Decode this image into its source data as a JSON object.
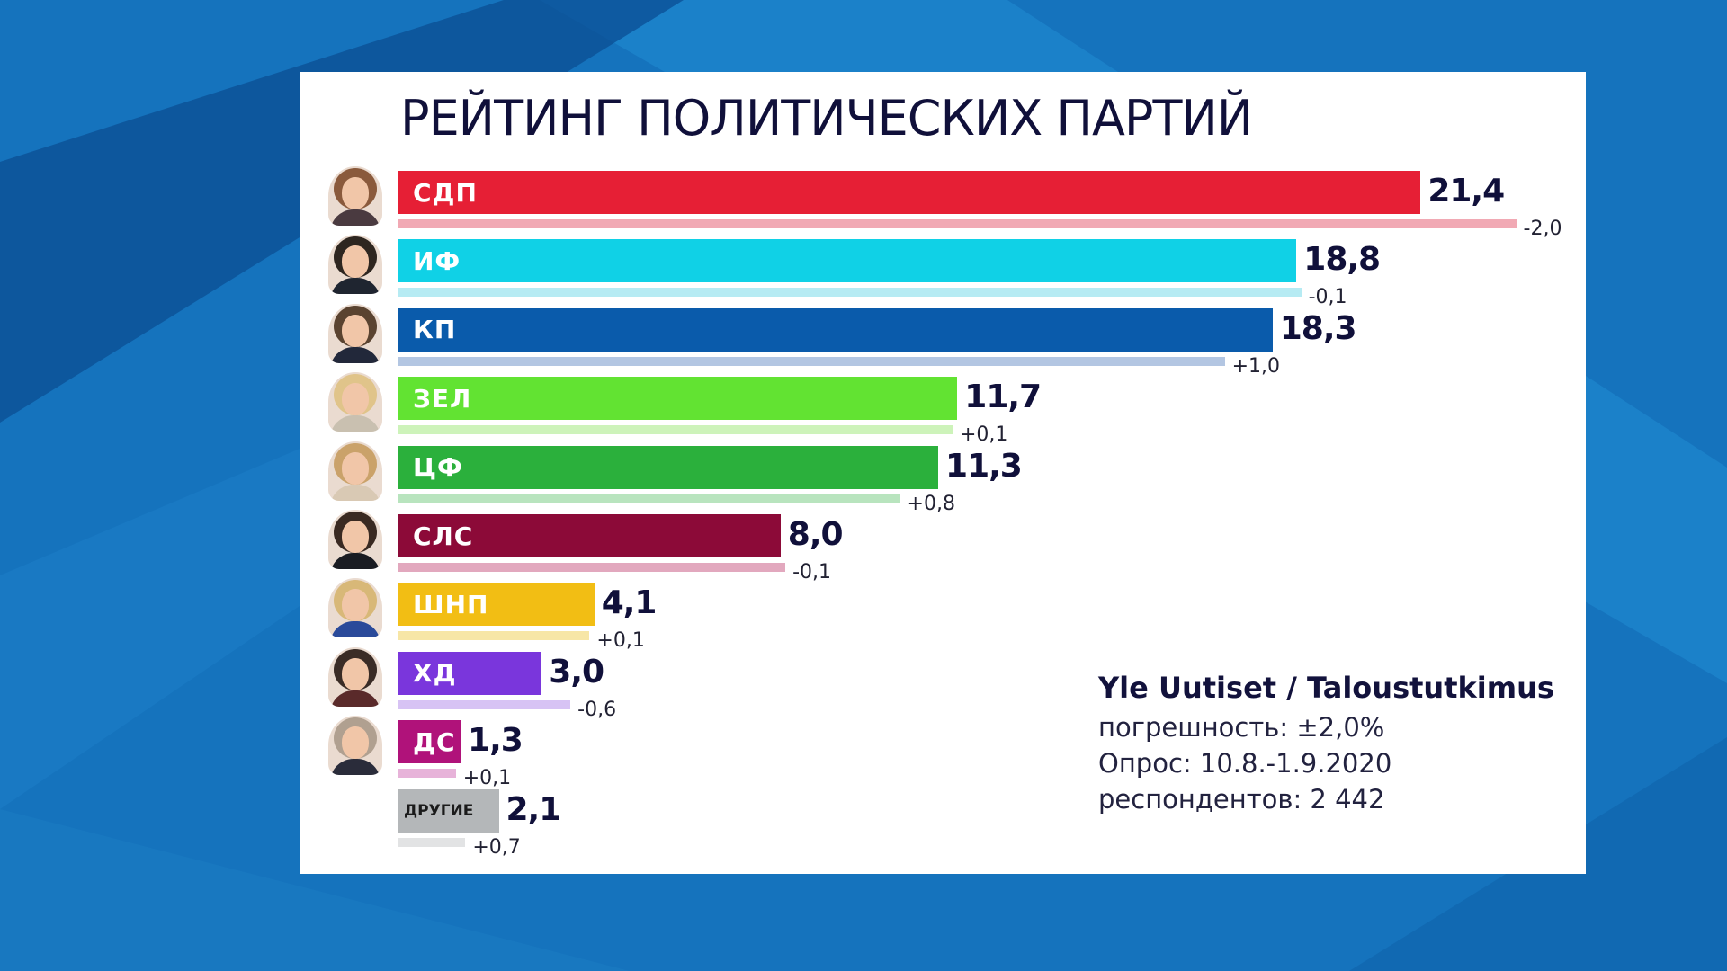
{
  "chart_data": {
    "type": "bar",
    "title": "РЕЙТИНГ ПОЛИТИЧЕСКИХ ПАРТИЙ",
    "orientation": "horizontal",
    "categories": [
      "СДП",
      "ИФ",
      "КП",
      "ЗЕЛ",
      "ЦФ",
      "СЛС",
      "ШНП",
      "ХД",
      "ДС",
      "ДРУГИЕ"
    ],
    "values": [
      21.4,
      18.8,
      18.3,
      11.7,
      11.3,
      8.0,
      4.1,
      3.0,
      1.3,
      2.1
    ],
    "value_labels": [
      "21,4",
      "18,8",
      "18,3",
      "11,7",
      "11,3",
      "8,0",
      "4,1",
      "3,0",
      "1,3",
      "2,1"
    ],
    "changes": [
      -2.0,
      -0.1,
      1.0,
      0.1,
      0.8,
      -0.1,
      0.1,
      -0.6,
      0.1,
      0.7
    ],
    "change_labels": [
      "-2,0",
      "-0,1",
      "+1,0",
      "+0,1",
      "+0,8",
      "-0,1",
      "+0,1",
      "-0,6",
      "+0,1",
      "+0,7"
    ],
    "previous_values": [
      23.4,
      18.9,
      17.3,
      11.6,
      10.5,
      8.1,
      4.0,
      3.6,
      1.2,
      1.4
    ],
    "colors": [
      "#e61f35",
      "#10d1e6",
      "#0a5bab",
      "#62e332",
      "#2bb03c",
      "#8c0a38",
      "#f2be14",
      "#7a36dc",
      "#b0127a",
      "#b4b7b9"
    ],
    "previous_colors": [
      "#f1a9b4",
      "#b6ebf3",
      "#b3c6e2",
      "#cdf3ba",
      "#b8e4be",
      "#e2a8be",
      "#f7e6a6",
      "#d7c3f4",
      "#e7b3d9",
      "#e2e3e4"
    ],
    "xlim": [
      0,
      24
    ],
    "grid": false,
    "legend": "none"
  },
  "portraits": [
    {
      "hair": "#8a5a3c",
      "body": "#4a3a40"
    },
    {
      "hair": "#2e2620",
      "body": "#1f2530"
    },
    {
      "hair": "#5a4330",
      "body": "#22283a"
    },
    {
      "hair": "#e0c48a",
      "body": "#c9c0b0"
    },
    {
      "hair": "#caa26a",
      "body": "#d9c9b4"
    },
    {
      "hair": "#3a2a22",
      "body": "#1a1c22"
    },
    {
      "hair": "#d8b878",
      "body": "#2a4a9a"
    },
    {
      "hair": "#3a2c26",
      "body": "#5a2a2a"
    },
    {
      "hair": "#b0a090",
      "body": "#2a2c3a"
    },
    null
  ],
  "source": "Yle Uutiset / Taloustutkimus",
  "error_margin": "погрешность:  ±2,0%",
  "poll_period": "Опрос: 10.8.-1.9.2020",
  "respondents": "респондентов: 2 442"
}
